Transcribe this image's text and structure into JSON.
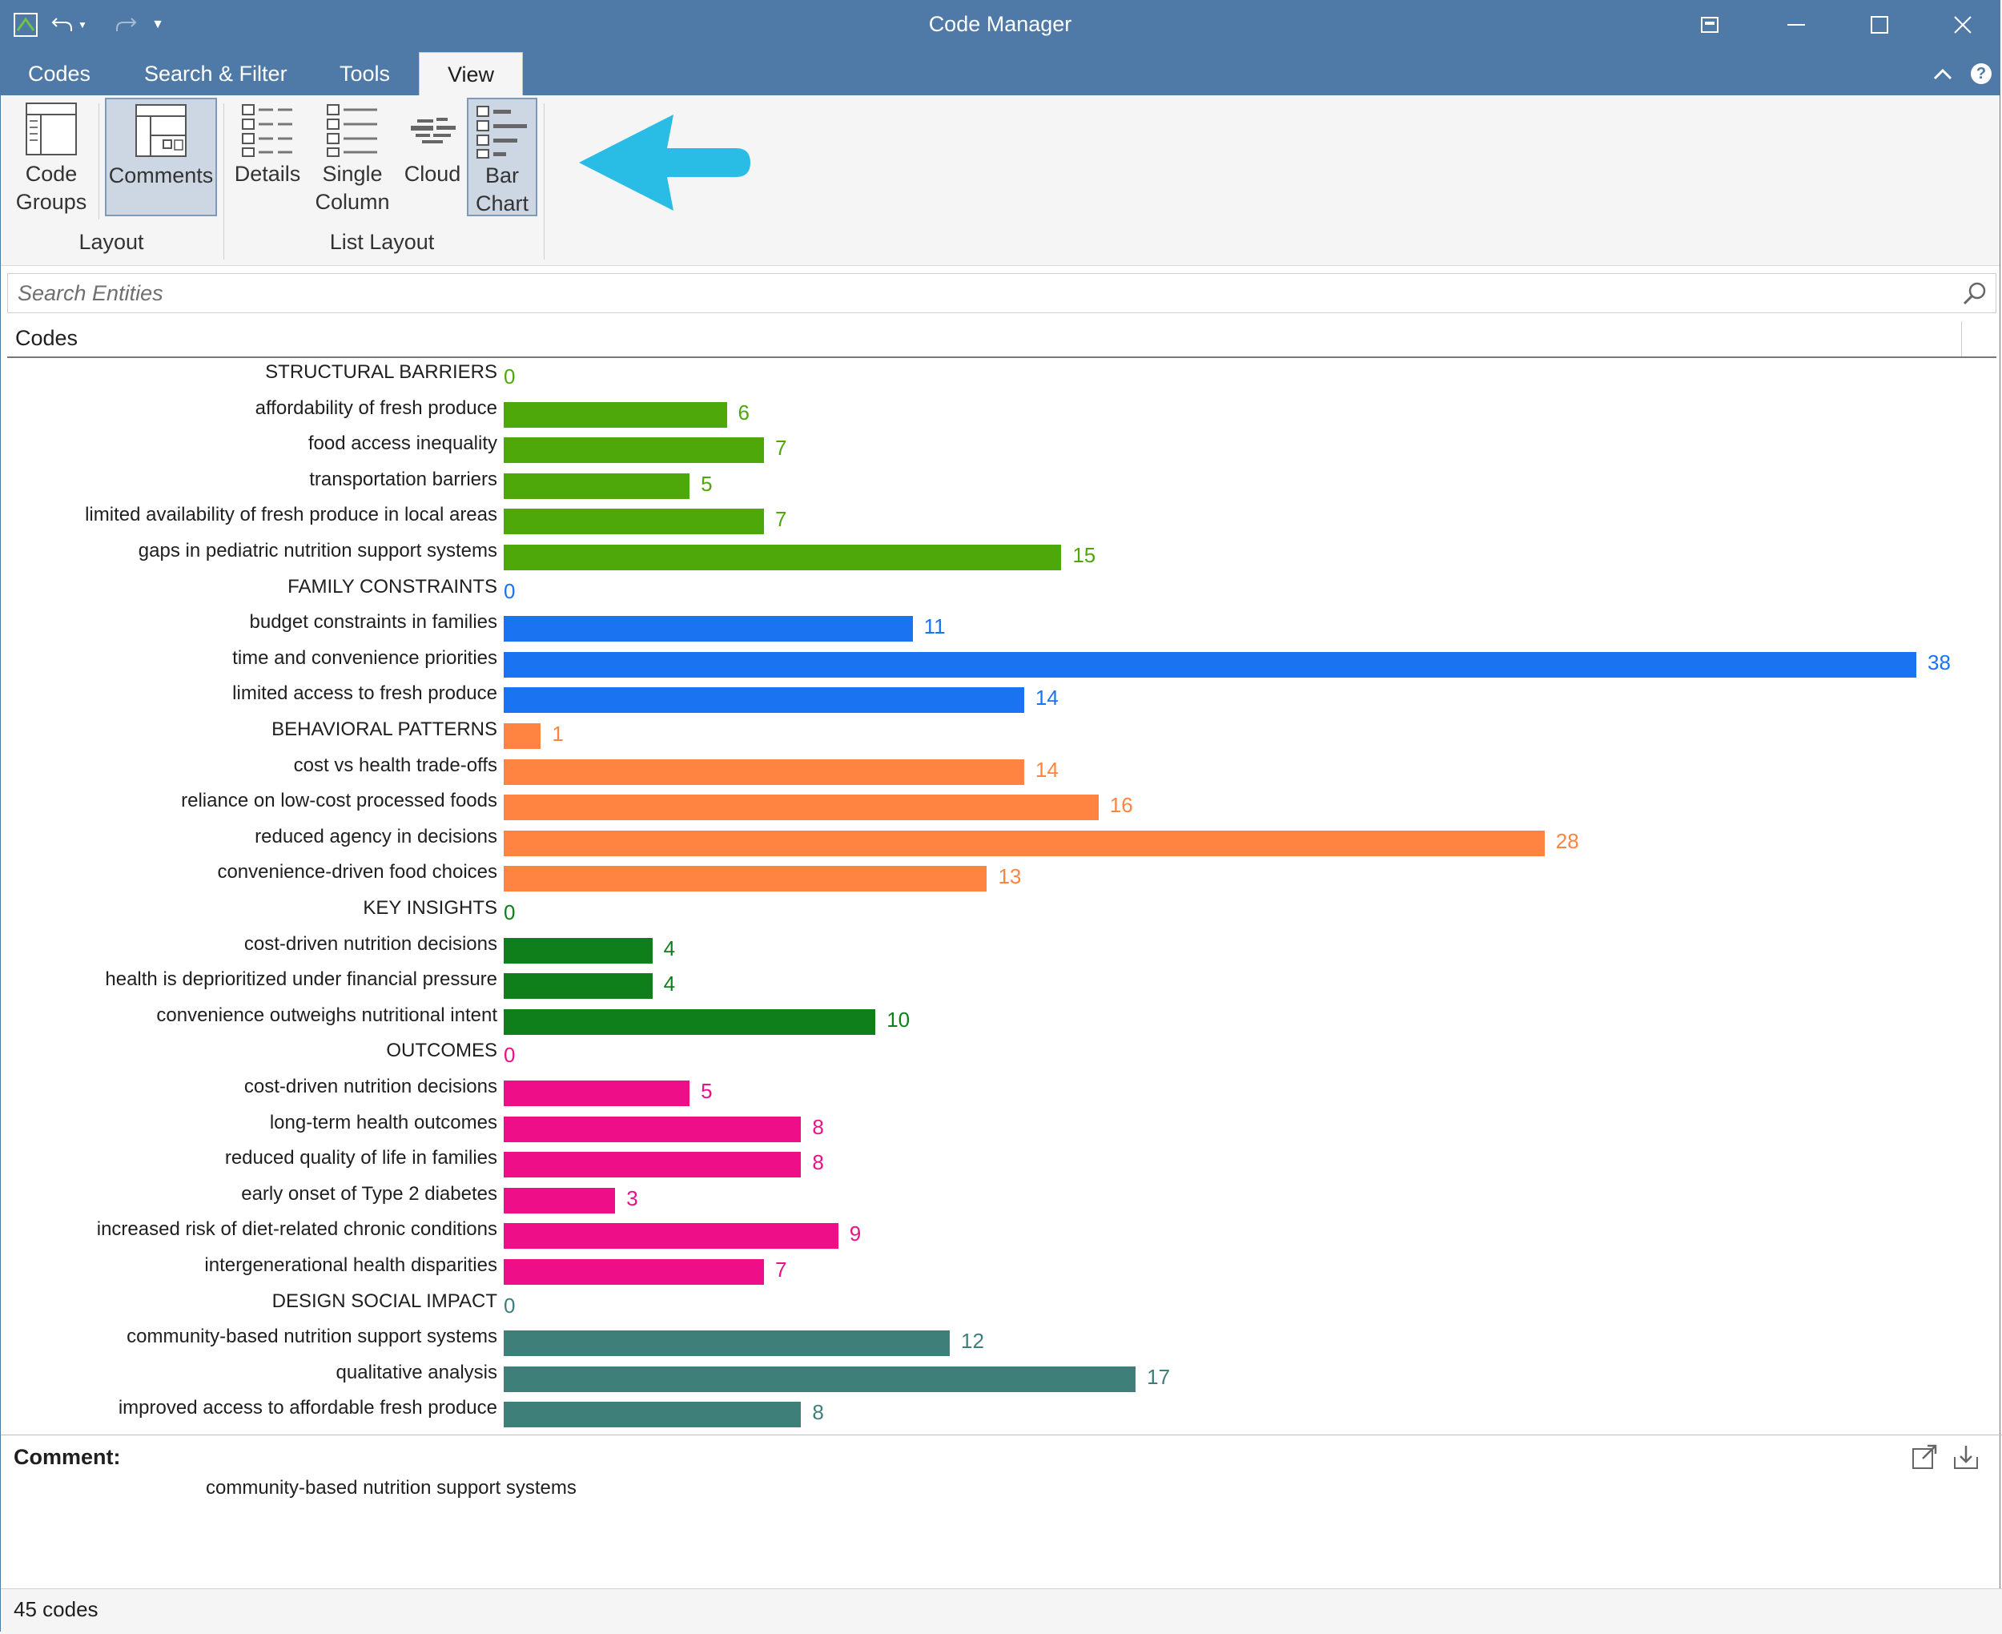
{
  "window": {
    "title": "Code Manager"
  },
  "tabs": [
    {
      "label": "Codes",
      "active": false
    },
    {
      "label": "Search & Filter",
      "active": false
    },
    {
      "label": "Tools",
      "active": false
    },
    {
      "label": "View",
      "active": true
    }
  ],
  "ribbon": {
    "layout_group": {
      "label": "Layout",
      "buttons": [
        {
          "line1": "Code",
          "line2": "Groups",
          "active": false
        },
        {
          "line1": "Comments",
          "line2": "",
          "active": true
        }
      ]
    },
    "list_layout_group": {
      "label": "List Layout",
      "buttons": [
        {
          "line1": "Details",
          "line2": "",
          "active": false
        },
        {
          "line1": "Single",
          "line2": "Column",
          "active": false
        },
        {
          "line1": "Cloud",
          "line2": "",
          "active": false
        },
        {
          "line1": "Bar",
          "line2": "Chart",
          "active": true
        }
      ]
    }
  },
  "search": {
    "placeholder": "Search Entities"
  },
  "list": {
    "column_header": "Codes"
  },
  "colors": {
    "titlebar": "#4f79a6",
    "arrow": "#29bde6",
    "structural": "#4ea80a",
    "family": "#1a73f0",
    "behavioral": "#ff8442",
    "insights": "#0f7f1c",
    "outcomes": "#ee0f88",
    "design": "#3f7f7a"
  },
  "chart_data": {
    "type": "bar",
    "orientation": "horizontal",
    "xlim": [
      0,
      38
    ],
    "items": [
      {
        "label": "STRUCTURAL BARRIERS",
        "value": 0,
        "group": "structural",
        "header": true
      },
      {
        "label": "affordability of fresh produce",
        "value": 6,
        "group": "structural",
        "header": false
      },
      {
        "label": "food access inequality",
        "value": 7,
        "group": "structural",
        "header": false
      },
      {
        "label": "transportation barriers",
        "value": 5,
        "group": "structural",
        "header": false
      },
      {
        "label": "limited availability of fresh produce in local areas",
        "value": 7,
        "group": "structural",
        "header": false
      },
      {
        "label": "gaps in pediatric nutrition support systems",
        "value": 15,
        "group": "structural",
        "header": false
      },
      {
        "label": "FAMILY CONSTRAINTS",
        "value": 0,
        "group": "family",
        "header": true
      },
      {
        "label": "budget constraints in families",
        "value": 11,
        "group": "family",
        "header": false
      },
      {
        "label": "time and convenience priorities",
        "value": 38,
        "group": "family",
        "header": false
      },
      {
        "label": "limited access to fresh produce",
        "value": 14,
        "group": "family",
        "header": false
      },
      {
        "label": "BEHAVIORAL PATTERNS",
        "value": 1,
        "group": "behavioral",
        "header": true
      },
      {
        "label": "cost vs health trade-offs",
        "value": 14,
        "group": "behavioral",
        "header": false
      },
      {
        "label": "reliance on low-cost processed foods",
        "value": 16,
        "group": "behavioral",
        "header": false
      },
      {
        "label": "reduced agency in decisions",
        "value": 28,
        "group": "behavioral",
        "header": false
      },
      {
        "label": "convenience-driven food choices",
        "value": 13,
        "group": "behavioral",
        "header": false
      },
      {
        "label": "KEY INSIGHTS",
        "value": 0,
        "group": "insights",
        "header": true
      },
      {
        "label": "cost-driven nutrition decisions",
        "value": 4,
        "group": "insights",
        "header": false
      },
      {
        "label": "health is deprioritized under financial pressure",
        "value": 4,
        "group": "insights",
        "header": false
      },
      {
        "label": "convenience outweighs nutritional intent",
        "value": 10,
        "group": "insights",
        "header": false
      },
      {
        "label": "OUTCOMES",
        "value": 0,
        "group": "outcomes",
        "header": true
      },
      {
        "label": "cost-driven nutrition decisions",
        "value": 5,
        "group": "outcomes",
        "header": false
      },
      {
        "label": "long-term health outcomes",
        "value": 8,
        "group": "outcomes",
        "header": false
      },
      {
        "label": "reduced quality of life in families",
        "value": 8,
        "group": "outcomes",
        "header": false
      },
      {
        "label": "early onset of Type 2 diabetes",
        "value": 3,
        "group": "outcomes",
        "header": false
      },
      {
        "label": "increased risk of diet-related chronic conditions",
        "value": 9,
        "group": "outcomes",
        "header": false
      },
      {
        "label": "intergenerational health disparities",
        "value": 7,
        "group": "outcomes",
        "header": false
      },
      {
        "label": "DESIGN SOCIAL IMPACT",
        "value": 0,
        "group": "design",
        "header": true
      },
      {
        "label": "community-based nutrition support systems",
        "value": 12,
        "group": "design",
        "header": false
      },
      {
        "label": "qualitative analysis",
        "value": 17,
        "group": "design",
        "header": false
      },
      {
        "label": "improved access to affordable fresh produce",
        "value": 8,
        "group": "design",
        "header": false
      }
    ]
  },
  "comment": {
    "title": "Comment:",
    "text": "community-based nutrition support systems"
  },
  "status": {
    "text": "45 codes"
  }
}
